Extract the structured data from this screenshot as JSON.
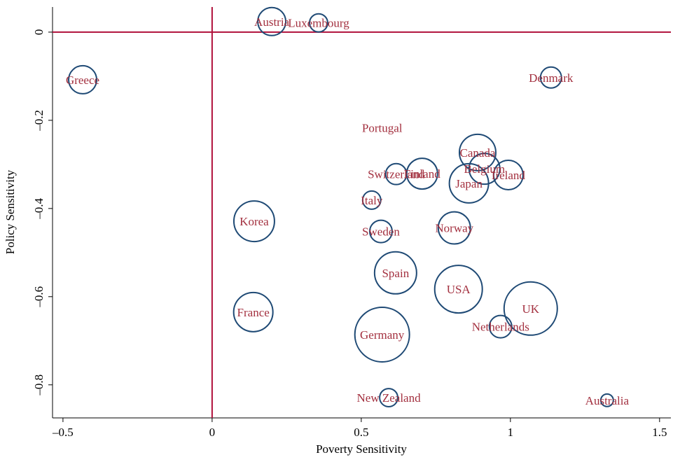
{
  "chart_data": {
    "type": "scatter",
    "x_label": "Poverty Sensitivity",
    "y_label": "Policy Sensitivity",
    "categories": [
      "Austria",
      "Luxembourg",
      "Greece",
      "Denmark",
      "Portugal",
      "Canada",
      "Belgium",
      "Ireland",
      "Japan",
      "Finland",
      "Switzerland",
      "Italy",
      "Korea",
      "Sweden",
      "Norway",
      "Spain",
      "USA",
      "UK",
      "Netherlands",
      "France",
      "Germany",
      "New Zealand",
      "Australia"
    ],
    "x": [
      0.2,
      0.357,
      -0.434,
      1.136,
      0.57,
      0.89,
      0.913,
      0.993,
      0.861,
      0.704,
      0.617,
      0.535,
      0.141,
      0.566,
      0.812,
      0.615,
      0.826,
      1.068,
      0.967,
      0.138,
      0.57,
      0.592,
      1.324
    ],
    "values": [
      0.024,
      0.021,
      -0.108,
      -0.103,
      -0.217,
      -0.273,
      -0.31,
      -0.324,
      -0.343,
      -0.321,
      -0.322,
      -0.381,
      -0.429,
      -0.452,
      -0.444,
      -0.546,
      -0.583,
      -0.627,
      -0.668,
      -0.635,
      -0.686,
      -0.829,
      -0.835
    ],
    "sizes": [
      1.0,
      0.42,
      1.0,
      0.56,
      0,
      1.69,
      1.21,
      1.1,
      1.96,
      1.21,
      0.56,
      0.42,
      2.1,
      0.64,
      1.32,
      2.25,
      2.89,
      3.61,
      0.64,
      1.96,
      3.8,
      0.42,
      0.2
    ],
    "marker_color": "#1f4a75",
    "label_color": "#a3303f",
    "reference_color": "#b0103a",
    "hline": 0,
    "vline": 0,
    "xlim": [
      -0.535,
      1.538
    ],
    "ylim": [
      -0.875,
      0.057
    ],
    "xticks": [
      {
        "value": -0.5,
        "label": "–0.5"
      },
      0,
      0.5,
      1,
      1.5
    ],
    "yticks": [
      0,
      {
        "value": -0.2,
        "label": "–0.2"
      },
      {
        "value": -0.4,
        "label": "–0.4"
      },
      {
        "value": -0.6,
        "label": "–0.6"
      },
      {
        "value": -0.8,
        "label": "–0.8"
      }
    ]
  }
}
